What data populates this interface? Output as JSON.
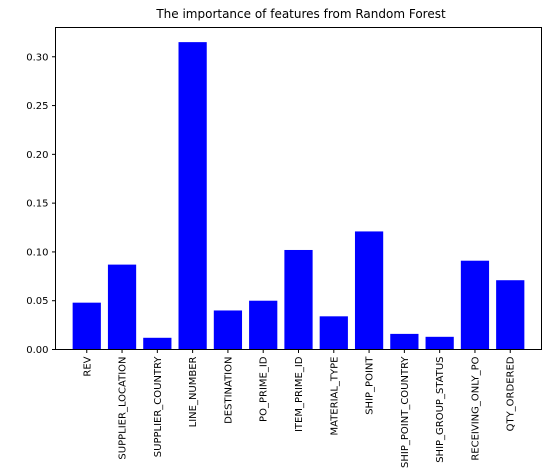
{
  "chart_data": {
    "type": "bar",
    "title": "The importance of features from Random Forest",
    "xlabel": "",
    "ylabel": "",
    "categories": [
      "REV",
      "SUPPLIER_LOCATION",
      "SUPPLIER_COUNTRY",
      "LINE_NUMBER",
      "DESTINATION",
      "PO_PRIME_ID",
      "ITEM_PRIME_ID",
      "MATERIAL_TYPE",
      "SHIP_POINT",
      "SHIP_POINT_COUNTRY",
      "SHIP_GROUP_STATUS",
      "RECEIVING_ONLY_PO",
      "QTY_ORDERED"
    ],
    "values": [
      0.048,
      0.087,
      0.012,
      0.315,
      0.04,
      0.05,
      0.102,
      0.034,
      0.121,
      0.016,
      0.013,
      0.091,
      0.071
    ],
    "ylim": [
      0,
      0.33
    ],
    "yticks": [
      "0.00",
      "0.05",
      "0.10",
      "0.15",
      "0.20",
      "0.25",
      "0.30"
    ],
    "bar_color": "#0000ff",
    "grid": false,
    "legend": "none"
  }
}
